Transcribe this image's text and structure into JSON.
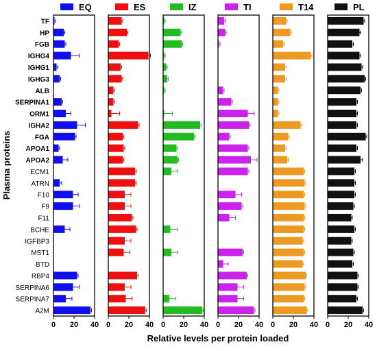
{
  "chart_data": {
    "type": "bar",
    "orientation": "horizontal",
    "layout": "small-multiples",
    "ylabel": "Plasma proteins",
    "xlabel": "Relative levels per protein loaded",
    "xlim": [
      0,
      40
    ],
    "xticks": [
      "0",
      "20",
      "40"
    ],
    "legend_placement": "top",
    "error_bars": true,
    "bold_categories": [
      "TF",
      "HP",
      "FGB",
      "IGHG4",
      "IGHG1",
      "IGHG3",
      "ALB",
      "SERPINA1",
      "ORM1",
      "IGHA2",
      "FGA",
      "APOA1",
      "APOA2"
    ],
    "categories": [
      "TF",
      "HP",
      "FGB",
      "IGHG4",
      "IGHG1",
      "IGHG3",
      "ALB",
      "SERPINA1",
      "ORM1",
      "IGHA2",
      "FGA",
      "APOA1",
      "APOA2",
      "ECM1",
      "ATRN",
      "F10",
      "F9",
      "F11",
      "BCHE",
      "IGFBP3",
      "MST1",
      "BTD",
      "RBP4",
      "SERPINA6",
      "SERPINA7",
      "A2M"
    ],
    "series": [
      {
        "name": "EQ",
        "color": "#1010ee",
        "values": [
          1,
          10,
          11,
          17,
          3,
          6,
          0,
          8,
          12,
          23,
          21,
          5,
          9,
          0,
          6,
          19,
          19,
          0,
          11,
          0,
          0,
          0,
          23,
          19,
          12,
          36
        ],
        "errors": [
          1,
          1,
          1,
          8,
          1,
          1,
          0,
          1,
          5,
          8,
          1,
          1,
          5,
          0,
          2,
          5,
          6,
          0,
          5,
          0,
          0,
          0,
          1,
          6,
          6,
          1
        ]
      },
      {
        "name": "ES",
        "color": "#ee1010",
        "values": [
          13,
          18,
          10,
          39,
          12,
          13,
          5,
          5,
          3,
          29,
          14,
          15,
          14,
          26,
          26,
          16,
          16,
          23,
          27,
          16,
          15,
          0,
          28,
          16,
          17,
          36
        ],
        "errors": [
          1,
          1,
          1,
          2,
          1,
          1,
          1,
          1,
          8,
          1,
          1,
          1,
          1,
          1,
          1,
          6,
          6,
          1,
          1,
          6,
          6,
          0,
          1,
          6,
          6,
          1
        ]
      },
      {
        "name": "IZ",
        "color": "#22bb22",
        "values": [
          1,
          17,
          18,
          1,
          3,
          4,
          1,
          0,
          1,
          36,
          30,
          13,
          14,
          8,
          0,
          0,
          0,
          0,
          7,
          0,
          8,
          0,
          0,
          0,
          6,
          38
        ],
        "errors": [
          1,
          1,
          1,
          1,
          1,
          1,
          1,
          0,
          8,
          1,
          1,
          1,
          1,
          6,
          0,
          0,
          0,
          0,
          7,
          0,
          6,
          0,
          0,
          0,
          6,
          1
        ]
      },
      {
        "name": "TI",
        "color": "#cc22ee",
        "values": [
          6,
          7,
          1,
          0,
          0,
          0,
          5,
          13,
          29,
          30,
          11,
          29,
          32,
          29,
          0,
          17,
          23,
          11,
          0,
          0,
          24,
          5,
          28,
          19,
          19,
          35
        ],
        "errors": [
          1,
          1,
          1,
          0,
          0,
          0,
          1,
          1,
          6,
          1,
          1,
          1,
          6,
          1,
          0,
          6,
          1,
          6,
          0,
          0,
          1,
          5,
          1,
          6,
          6,
          1
        ]
      },
      {
        "name": "T14",
        "color": "#ee9922",
        "values": [
          13,
          17,
          10,
          37,
          12,
          12,
          5,
          5,
          5,
          27,
          15,
          12,
          14,
          30,
          31,
          30,
          31,
          30,
          30,
          29,
          30,
          29,
          32,
          31,
          30,
          33
        ],
        "errors": [
          1,
          1,
          1,
          1,
          1,
          1,
          1,
          1,
          1,
          1,
          1,
          1,
          1,
          1,
          1,
          1,
          1,
          1,
          1,
          1,
          1,
          1,
          1,
          1,
          1,
          1
        ]
      },
      {
        "name": "PL",
        "color": "#111111",
        "values": [
          35,
          31,
          24,
          31,
          33,
          36,
          32,
          28,
          28,
          28,
          37,
          28,
          32,
          26,
          26,
          26,
          25,
          23,
          26,
          23,
          25,
          24,
          29,
          29,
          28,
          34
        ],
        "errors": [
          1,
          1,
          1,
          1,
          1,
          1,
          1,
          1,
          1,
          1,
          1,
          1,
          2,
          1,
          1,
          1,
          1,
          1,
          1,
          1,
          1,
          1,
          1,
          1,
          1,
          1
        ]
      }
    ]
  }
}
